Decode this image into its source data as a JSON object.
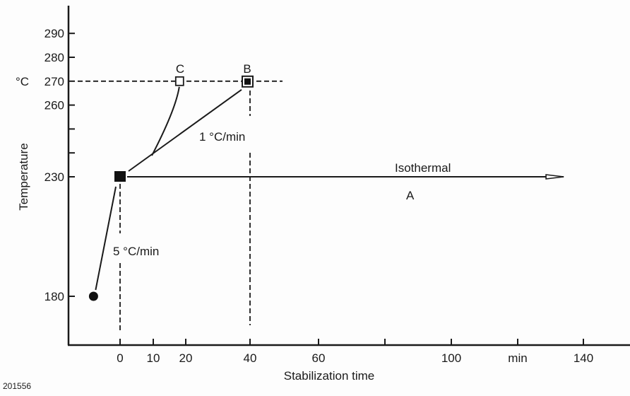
{
  "chart_data": {
    "type": "line",
    "title": "",
    "xlabel": "Stabilization time",
    "ylabel": "Temperature",
    "y_unit": "°C",
    "x_unit_label": "min",
    "x_ticks": [
      {
        "value": 0,
        "label": "0"
      },
      {
        "value": 10,
        "label": "10"
      },
      {
        "value": 20,
        "label": "20"
      },
      {
        "value": 40,
        "label": "40"
      },
      {
        "value": 60,
        "label": "60"
      },
      {
        "value": 80,
        "label": ""
      },
      {
        "value": 100,
        "label": "100"
      },
      {
        "value": 120,
        "label": "min"
      },
      {
        "value": 140,
        "label": "140"
      }
    ],
    "y_ticks": [
      {
        "value": 180,
        "label": "180"
      },
      {
        "value": 230,
        "label": "230"
      },
      {
        "value": 240,
        "label": ""
      },
      {
        "value": 250,
        "label": ""
      },
      {
        "value": 260,
        "label": "260"
      },
      {
        "value": 270,
        "label": "270"
      },
      {
        "value": 280,
        "label": "280"
      },
      {
        "value": 290,
        "label": "290"
      }
    ],
    "points": {
      "start": {
        "x": -8,
        "y": 180
      },
      "hold": {
        "x": 0,
        "y": 230
      },
      "C": {
        "x": 18,
        "y": 270,
        "label": "C"
      },
      "B": {
        "x": 40,
        "y": 270,
        "label": "B"
      },
      "arrow_end": {
        "x": 134,
        "y": 230
      }
    },
    "annotations": {
      "ramp_fast": "5 °C/min",
      "ramp_slow": "1 °C/min",
      "isothermal": "Isothermal",
      "isothermal_label": "A"
    },
    "grid": false,
    "legend": "none"
  },
  "figure_id": "201556"
}
